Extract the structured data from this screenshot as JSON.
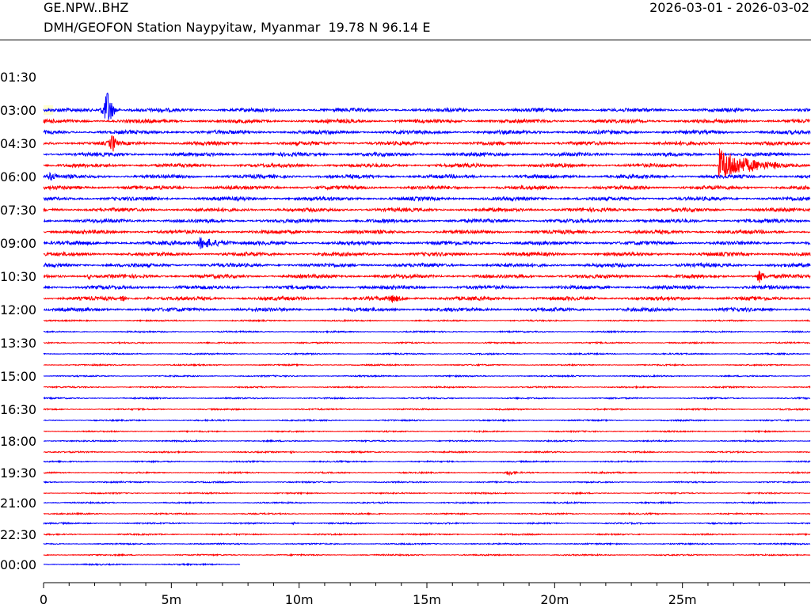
{
  "header": {
    "station_code": "GE.NPW..BHZ",
    "station_desc": "DMH/GEOFON Station Naypyitaw, Myanmar  19.78 N 96.14 E",
    "date_range": "2026-03-01 - 2026-03-02"
  },
  "chart_data": {
    "type": "line",
    "subtype": "helicorder",
    "title": "GE.NPW..BHZ",
    "xlabel": "",
    "ylabel": "",
    "xlim": [
      0,
      30
    ],
    "x_ticks": [
      {
        "v": 0,
        "label": "0"
      },
      {
        "v": 5,
        "label": "5m"
      },
      {
        "v": 10,
        "label": "10m"
      },
      {
        "v": 15,
        "label": "15m"
      },
      {
        "v": 20,
        "label": "20m"
      },
      {
        "v": 25,
        "label": "25m"
      }
    ],
    "minor_tick_step_min": 1,
    "row_minutes": 30,
    "first_row_start": "03:00",
    "row_count": 43,
    "last_row_end_min": 7.7,
    "colors": [
      "#0000ff",
      "#ff0000"
    ],
    "gap_marker_color": "#ffffcc",
    "y_labels": [
      {
        "row": -3,
        "label": "01:30"
      },
      {
        "row": 0,
        "label": "03:00"
      },
      {
        "row": 3,
        "label": "04:30"
      },
      {
        "row": 6,
        "label": "06:00"
      },
      {
        "row": 9,
        "label": "07:30"
      },
      {
        "row": 12,
        "label": "09:00"
      },
      {
        "row": 15,
        "label": "10:30"
      },
      {
        "row": 18,
        "label": "12:00"
      },
      {
        "row": 21,
        "label": "13:30"
      },
      {
        "row": 24,
        "label": "15:00"
      },
      {
        "row": 27,
        "label": "16:30"
      },
      {
        "row": 30,
        "label": "18:00"
      },
      {
        "row": 33,
        "label": "19:30"
      },
      {
        "row": 36,
        "label": "21:00"
      },
      {
        "row": 39,
        "label": "22:30"
      },
      {
        "row": 42,
        "label": "00:00"
      }
    ],
    "events": [
      {
        "row": 0,
        "start": 2.1,
        "end": 3.0,
        "amp": 30,
        "peak": 2.5
      },
      {
        "row": 3,
        "start": 2.3,
        "end": 3.1,
        "amp": 14,
        "peak": 2.7
      },
      {
        "row": 6,
        "start": 0.0,
        "end": 1.5,
        "amp": 6,
        "peak": 0.25
      },
      {
        "row": 5,
        "start": 26.4,
        "end": 30,
        "amp": 22,
        "peak": 26.45
      },
      {
        "row": 5,
        "start": 28.4,
        "end": 28.9,
        "amp": 6,
        "peak": 28.6
      },
      {
        "row": 12,
        "start": 6.0,
        "end": 9.0,
        "amp": 8,
        "peak": 6.1
      },
      {
        "row": 14,
        "start": 15.2,
        "end": 15.4,
        "amp": 3,
        "peak": 15.3
      },
      {
        "row": 15,
        "start": 1.7,
        "end": 2.0,
        "amp": 4,
        "peak": 1.8
      },
      {
        "row": 15,
        "start": 27.9,
        "end": 28.7,
        "amp": 9,
        "peak": 28.0
      },
      {
        "row": 17,
        "start": 3.0,
        "end": 3.3,
        "amp": 5,
        "peak": 3.1
      },
      {
        "row": 17,
        "start": 4.0,
        "end": 4.2,
        "amp": 3,
        "peak": 4.1
      },
      {
        "row": 17,
        "start": 8.9,
        "end": 15.0,
        "amp": 6,
        "peak": 13.6
      },
      {
        "row": 31,
        "start": 9.6,
        "end": 9.8,
        "amp": 2,
        "peak": 9.7
      },
      {
        "row": 33,
        "start": 18.1,
        "end": 19.0,
        "amp": 4,
        "peak": 18.2
      },
      {
        "row": 33,
        "start": 21.8,
        "end": 22.1,
        "amp": 2,
        "peak": 21.9
      },
      {
        "row": 38,
        "start": 9.7,
        "end": 10.2,
        "amp": 2,
        "peak": 9.8
      }
    ]
  }
}
